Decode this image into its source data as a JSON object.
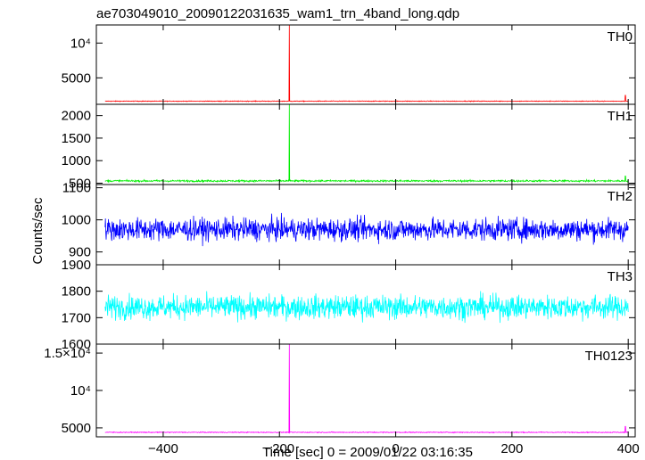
{
  "chart_data": {
    "type": "line",
    "title": "ae703049010_20090122031635_wam1_trn_4band_long.qdp",
    "xlabel": "Time [sec] 0 = 2009/01/22 03:16:35",
    "ylabel": "Counts/sec",
    "xlim": [
      -515,
      412
    ],
    "x_ticks": [
      -400,
      -200,
      0,
      200,
      400
    ],
    "x_tick_labels": [
      "−400",
      "−200",
      "0",
      "200",
      "400"
    ],
    "series": [
      {
        "name": "TH0",
        "color": "#ff0000",
        "ylim": [
          1200,
          12600
        ],
        "y_ticks": [
          5000,
          10000
        ],
        "y_tick_labels": [
          "5000",
          "10⁴"
        ],
        "baseline": 1650,
        "noise": 50,
        "spikes": [
          {
            "x": -183,
            "y": 12600
          },
          {
            "x": 395,
            "y": 2500
          }
        ]
      },
      {
        "name": "TH1",
        "color": "#00ee00",
        "ylim": [
          470,
          2250
        ],
        "y_ticks": [
          500,
          1000,
          1500,
          2000
        ],
        "y_tick_labels": [
          "500",
          "1000",
          "1500",
          "2000"
        ],
        "baseline": 550,
        "noise": 20,
        "spikes": [
          {
            "x": -183,
            "y": 2250
          },
          {
            "x": 395,
            "y": 660
          }
        ]
      },
      {
        "name": "TH2",
        "color": "#0000ff",
        "ylim": [
          860,
          1110
        ],
        "y_ticks": [
          900,
          1000,
          1100
        ],
        "y_tick_labels": [
          "900",
          "1000",
          "1100"
        ],
        "baseline": 970,
        "noise": 35,
        "spikes": []
      },
      {
        "name": "TH3",
        "color": "#00ffff",
        "ylim": [
          1600,
          1900
        ],
        "y_ticks": [
          1600,
          1700,
          1800,
          1900
        ],
        "y_tick_labels": [
          "1600",
          "1700",
          "1800",
          "1900"
        ],
        "baseline": 1740,
        "noise": 45,
        "spikes": []
      },
      {
        "name": "TH0123",
        "color": "#ff00ff",
        "ylim": [
          3800,
          16200
        ],
        "y_ticks": [
          5000,
          10000,
          15000
        ],
        "y_tick_labels": [
          "5000",
          "10⁴",
          "1.5×10⁴"
        ],
        "baseline": 4400,
        "noise": 60,
        "spikes": [
          {
            "x": -183,
            "y": 16200
          },
          {
            "x": 395,
            "y": 5200
          }
        ]
      }
    ],
    "grid": false,
    "legend": "none"
  }
}
